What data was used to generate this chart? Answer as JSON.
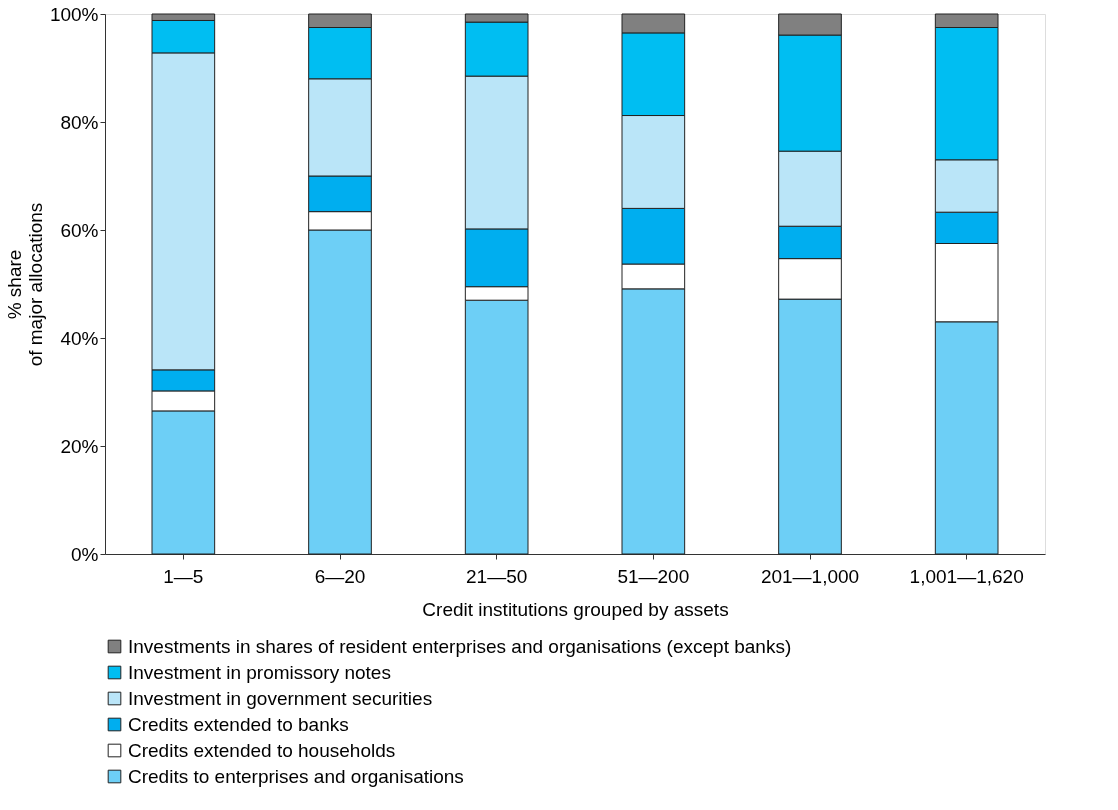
{
  "chart_data": {
    "type": "bar",
    "stacked": true,
    "xlabel": "Credit institutions grouped by assets",
    "ylabel": "% share\nof major allocations",
    "categories": [
      "1—5",
      "6—20",
      "21—50",
      "51—200",
      "201—1,000",
      "1,001—1,620"
    ],
    "series": [
      {
        "name": "Credits to enterprises and organisations",
        "color": "#6dcff6",
        "values": [
          26.5,
          60.0,
          47.0,
          49.1,
          47.2,
          43.0
        ]
      },
      {
        "name": "Credits extended to households",
        "color": "#ffffff",
        "values": [
          3.7,
          3.4,
          2.5,
          4.6,
          7.5,
          14.5
        ]
      },
      {
        "name": "Credits extended to banks",
        "color": "#00aeef",
        "values": [
          3.9,
          6.6,
          10.7,
          10.3,
          6.0,
          5.8
        ]
      },
      {
        "name": "Investment in government securities",
        "color": "#bae5f8",
        "values": [
          58.7,
          18.0,
          28.3,
          17.2,
          13.9,
          9.7
        ]
      },
      {
        "name": "Investment in promissory notes",
        "color": "#00bef2",
        "values": [
          6.0,
          9.5,
          10.0,
          15.3,
          21.5,
          24.5
        ]
      },
      {
        "name": "Investments in shares of resident enterprises and organisations (except banks)",
        "color": "#808080",
        "values": [
          1.2,
          2.5,
          1.5,
          3.5,
          3.9,
          2.5
        ]
      }
    ],
    "ylim": [
      0,
      100
    ],
    "yticks": [
      {
        "value": 0,
        "label": "0%"
      },
      {
        "value": 20,
        "label": "20%"
      },
      {
        "value": 40,
        "label": "40%"
      },
      {
        "value": 60,
        "label": "60%"
      },
      {
        "value": 80,
        "label": "80%"
      },
      {
        "value": 100,
        "label": "100%"
      }
    ],
    "grid": false,
    "legend": "bottom"
  }
}
